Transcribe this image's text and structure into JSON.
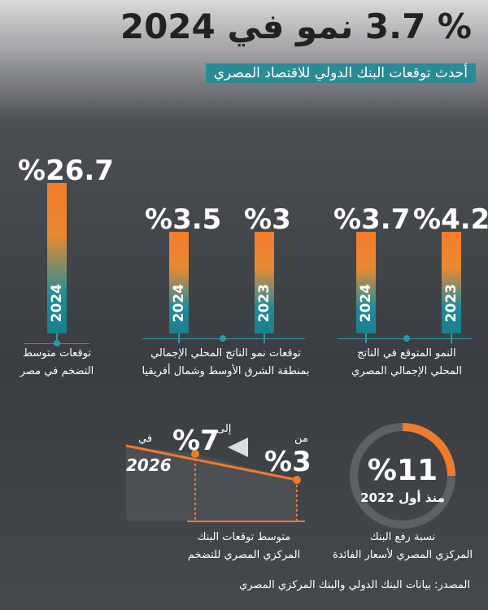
{
  "header": {
    "title_value": "3.7 %",
    "title_text": "نمو في 2024",
    "subtitle": "أحدث توقعات البنك الدولي للاقتصاد المصري"
  },
  "groups": [
    {
      "bars": [
        {
          "value": "%26.7",
          "year": "2024"
        }
      ],
      "caption": [
        "توقعات متوسط",
        "التضخم في مصر"
      ]
    },
    {
      "bars": [
        {
          "value": "%3.5",
          "year": "2024"
        },
        {
          "value": "%3",
          "year": "2023"
        }
      ],
      "caption": [
        "توقعات نمو الناتج المحلي الإجمالي",
        "بمنطقة الشرق الأوسط وشمال أفريقيا"
      ]
    },
    {
      "bars": [
        {
          "value": "%3.7",
          "year": "2024"
        },
        {
          "value": "%4.2",
          "year": "2023"
        }
      ],
      "caption": [
        "النمو المتوقع في الناتج",
        "المحلي الإجمالي المصري"
      ]
    }
  ],
  "inflation_target": {
    "from_label": "من",
    "from": "%3",
    "to_label": "إلى",
    "to": "%7",
    "in_label": "في",
    "year": "2026",
    "caption": [
      "متوسط توقعات البنك",
      "المركزي المصري للتضخم"
    ]
  },
  "interest": {
    "value": "%11",
    "since": "منذ أول 2022",
    "caption": [
      "نسبة رفع البنك",
      "المركزي المصري لأسعار الفائدة"
    ]
  },
  "source": "المصدر: بيانات البنك الدولي والبنك المركزي المصري"
}
